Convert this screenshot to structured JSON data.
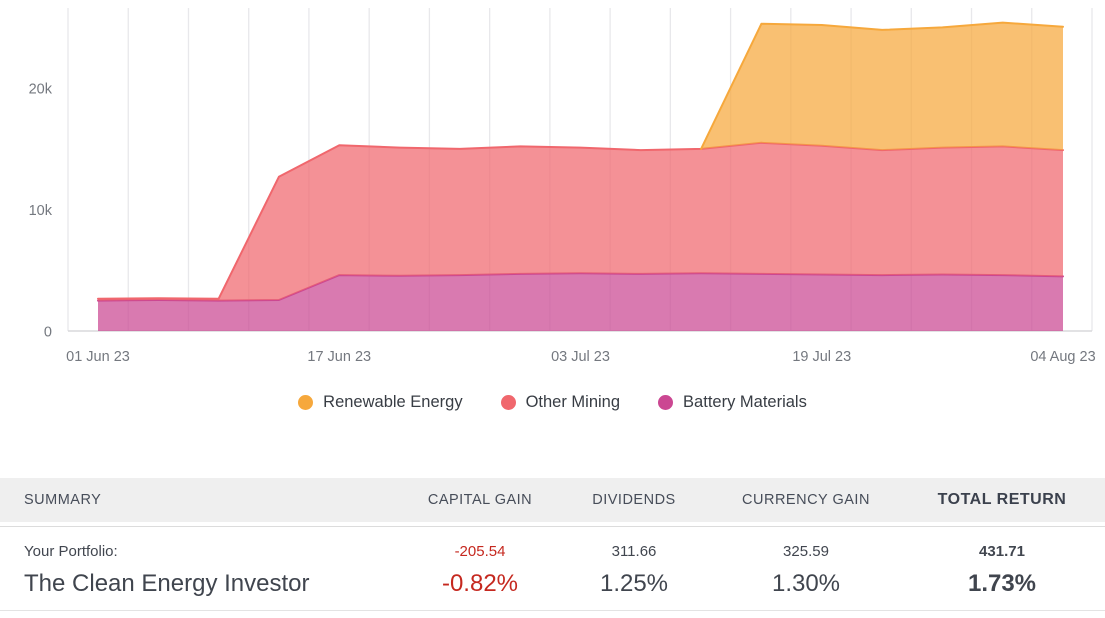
{
  "chart_data": {
    "type": "area",
    "stacked": true,
    "title": "",
    "xlabel": "",
    "ylabel": "",
    "x_days_since_first_date": [
      0,
      4,
      8,
      12,
      16,
      20,
      24,
      28,
      32,
      36,
      40,
      44,
      48,
      52,
      56,
      60,
      64
    ],
    "x_tick_days": [
      0,
      16,
      32,
      48,
      64
    ],
    "x_tick_labels": [
      "01 Jun 23",
      "17 Jun 23",
      "03 Jul 23",
      "19 Jul 23",
      "04 Aug 23"
    ],
    "y_tick_labels": [
      "0",
      "10k",
      "20k"
    ],
    "y_tick_values": [
      0,
      10000,
      20000
    ],
    "ylim": [
      0,
      26600
    ],
    "grid": "vertical-only",
    "legend_position": "bottom",
    "stack_order_bottom_to_top": [
      "Battery Materials",
      "Other Mining",
      "Renewable Energy"
    ],
    "series": [
      {
        "name": "Renewable Energy",
        "color": "#F6A83C",
        "values": [
          0,
          0,
          0,
          0,
          0,
          0,
          0,
          0,
          0,
          0,
          0,
          9800,
          9950,
          9900,
          9900,
          10200,
          10150
        ]
      },
      {
        "name": "Other Mining",
        "color": "#F0676D",
        "values": [
          150,
          150,
          150,
          10150,
          10700,
          10550,
          10400,
          10500,
          10350,
          10200,
          10250,
          10800,
          10600,
          10300,
          10450,
          10600,
          10400
        ]
      },
      {
        "name": "Battery Materials",
        "color": "#CB4792",
        "values": [
          2500,
          2550,
          2500,
          2550,
          4600,
          4550,
          4600,
          4700,
          4750,
          4700,
          4750,
          4700,
          4650,
          4600,
          4650,
          4600,
          4500
        ]
      }
    ]
  },
  "summary_table": {
    "columns": [
      "SUMMARY",
      "CAPITAL GAIN",
      "DIVIDENDS",
      "CURRENCY GAIN",
      "TOTAL RETURN"
    ],
    "rows": [
      {
        "cells": [
          "Your Portfolio:",
          "-205.54",
          "311.66",
          "325.59",
          "431.71"
        ]
      },
      {
        "cells": [
          "The Clean Energy Investor",
          "-0.82%",
          "1.25%",
          "1.30%",
          "1.73%"
        ]
      }
    ]
  },
  "colors": {
    "negative_value": "#C5281F",
    "header_background": "#EFEFEF",
    "gridline": "#E8E8EB",
    "axis_line": "#D8D8DC"
  }
}
